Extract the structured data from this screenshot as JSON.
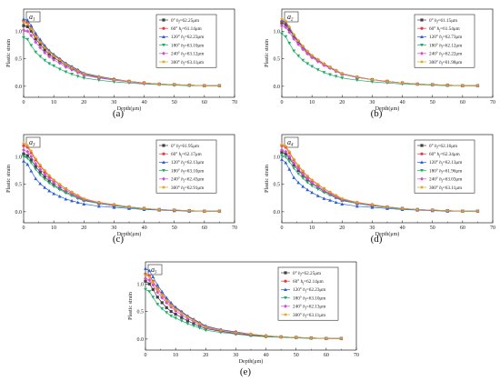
{
  "chart_data": [
    {
      "type": "line",
      "caption": "(a)",
      "tag": {
        "base": "a",
        "sub": "1"
      },
      "xlabel": "Depth(μm)",
      "ylabel": "Plastic strain",
      "xlim": [
        0,
        70
      ],
      "ylim": [
        -0.2,
        1.4
      ],
      "xticks": [
        0,
        10,
        20,
        30,
        40,
        50,
        60,
        70
      ],
      "yticks": [
        0.0,
        0.5,
        1.0
      ],
      "x": [
        0,
        1.3,
        2.5,
        4,
        5.5,
        7,
        8.5,
        10,
        12,
        14,
        16,
        18,
        20,
        25,
        30,
        35,
        40,
        45,
        50,
        55,
        60,
        65
      ],
      "series": [
        {
          "name": "0° hf=62.25μm",
          "values": [
            1.1,
            1.08,
            1.0,
            0.86,
            0.76,
            0.66,
            0.58,
            0.52,
            0.45,
            0.38,
            0.32,
            0.27,
            0.22,
            0.16,
            0.12,
            0.09,
            0.06,
            0.04,
            0.03,
            0.02,
            0.01,
            0.01
          ]
        },
        {
          "name": "60° hf=61.14μm",
          "values": [
            1.18,
            1.15,
            1.05,
            0.92,
            0.82,
            0.72,
            0.63,
            0.56,
            0.49,
            0.41,
            0.35,
            0.29,
            0.23,
            0.17,
            0.13,
            0.09,
            0.06,
            0.04,
            0.03,
            0.02,
            0.01,
            0.01
          ]
        },
        {
          "name": "120° hf=62.23μm",
          "values": [
            1.22,
            1.2,
            1.1,
            0.96,
            0.85,
            0.74,
            0.65,
            0.58,
            0.5,
            0.42,
            0.36,
            0.3,
            0.24,
            0.18,
            0.13,
            0.09,
            0.06,
            0.04,
            0.03,
            0.02,
            0.01,
            0.01
          ]
        },
        {
          "name": "180° hf=63.10μm",
          "values": [
            0.88,
            0.85,
            0.74,
            0.62,
            0.54,
            0.47,
            0.41,
            0.37,
            0.31,
            0.26,
            0.22,
            0.18,
            0.15,
            0.11,
            0.08,
            0.06,
            0.04,
            0.03,
            0.02,
            0.01,
            0.01,
            0.01
          ]
        },
        {
          "name": "240° hf=63.12μm",
          "values": [
            1.02,
            1.0,
            0.92,
            0.8,
            0.7,
            0.61,
            0.54,
            0.48,
            0.42,
            0.35,
            0.3,
            0.25,
            0.2,
            0.15,
            0.11,
            0.08,
            0.05,
            0.04,
            0.03,
            0.02,
            0.01,
            0.01
          ]
        },
        {
          "name": "300° hf=63.11μm",
          "values": [
            1.16,
            1.13,
            1.04,
            0.9,
            0.8,
            0.7,
            0.62,
            0.55,
            0.48,
            0.4,
            0.34,
            0.28,
            0.23,
            0.17,
            0.12,
            0.09,
            0.06,
            0.04,
            0.03,
            0.02,
            0.01,
            0.01
          ]
        }
      ]
    },
    {
      "type": "line",
      "caption": "(b)",
      "tag": {
        "base": "a",
        "sub": "2"
      },
      "xlabel": "Depth(μm)",
      "ylabel": "Plastic strain",
      "xlim": [
        0,
        70
      ],
      "ylim": [
        -0.2,
        1.4
      ],
      "xticks": [
        0,
        10,
        20,
        30,
        40,
        50,
        60,
        70
      ],
      "yticks": [
        0.0,
        0.5,
        1.0
      ],
      "x": [
        0,
        1.3,
        2.5,
        4,
        5.5,
        7,
        8.5,
        10,
        12,
        14,
        16,
        18,
        20,
        25,
        30,
        35,
        40,
        45,
        50,
        55,
        60,
        65
      ],
      "series": [
        {
          "name": "0° hf=61.15μm",
          "values": [
            1.15,
            1.12,
            1.03,
            0.9,
            0.8,
            0.7,
            0.61,
            0.54,
            0.47,
            0.4,
            0.34,
            0.28,
            0.22,
            0.16,
            0.12,
            0.09,
            0.06,
            0.04,
            0.03,
            0.02,
            0.01,
            0.01
          ]
        },
        {
          "name": "60° hf=61.54μm",
          "values": [
            1.18,
            1.15,
            1.05,
            0.92,
            0.81,
            0.71,
            0.62,
            0.55,
            0.48,
            0.4,
            0.34,
            0.28,
            0.23,
            0.17,
            0.12,
            0.09,
            0.06,
            0.04,
            0.03,
            0.02,
            0.01,
            0.01
          ]
        },
        {
          "name": "120° hf=62.73μm",
          "values": [
            1.2,
            1.16,
            1.06,
            0.93,
            0.82,
            0.72,
            0.63,
            0.56,
            0.48,
            0.41,
            0.35,
            0.29,
            0.23,
            0.17,
            0.12,
            0.09,
            0.06,
            0.04,
            0.03,
            0.02,
            0.01,
            0.01
          ]
        },
        {
          "name": "180° hf=62.12μm",
          "values": [
            0.95,
            0.9,
            0.78,
            0.64,
            0.55,
            0.47,
            0.41,
            0.36,
            0.3,
            0.25,
            0.21,
            0.18,
            0.15,
            0.11,
            0.08,
            0.06,
            0.04,
            0.03,
            0.02,
            0.01,
            0.01,
            0.01
          ]
        },
        {
          "name": "240° hf=62.22μm",
          "values": [
            1.1,
            1.07,
            0.98,
            0.86,
            0.76,
            0.67,
            0.59,
            0.52,
            0.45,
            0.38,
            0.33,
            0.27,
            0.22,
            0.16,
            0.12,
            0.08,
            0.06,
            0.04,
            0.03,
            0.02,
            0.01,
            0.01
          ]
        },
        {
          "name": "300° hf=61.98μm",
          "values": [
            1.22,
            1.18,
            1.08,
            0.94,
            0.83,
            0.73,
            0.64,
            0.56,
            0.49,
            0.41,
            0.35,
            0.29,
            0.23,
            0.17,
            0.12,
            0.09,
            0.06,
            0.04,
            0.03,
            0.02,
            0.01,
            0.01
          ]
        }
      ]
    },
    {
      "type": "line",
      "caption": "(c)",
      "tag": {
        "base": "a",
        "sub": "3"
      },
      "xlabel": "Depth(μm)",
      "ylabel": "Plastic strain",
      "xlim": [
        0,
        70
      ],
      "ylim": [
        -0.2,
        1.4
      ],
      "xticks": [
        0,
        10,
        20,
        30,
        40,
        50,
        60,
        70
      ],
      "yticks": [
        0.0,
        0.5,
        1.0
      ],
      "x": [
        0,
        1.3,
        2.5,
        4,
        5.5,
        7,
        8.5,
        10,
        12,
        14,
        16,
        18,
        20,
        25,
        30,
        35,
        40,
        45,
        50,
        55,
        60,
        65
      ],
      "series": [
        {
          "name": "0° hf=61.95μm",
          "values": [
            1.05,
            1.02,
            0.94,
            0.82,
            0.72,
            0.63,
            0.55,
            0.49,
            0.42,
            0.36,
            0.31,
            0.26,
            0.21,
            0.15,
            0.11,
            0.08,
            0.06,
            0.04,
            0.03,
            0.02,
            0.01,
            0.01
          ]
        },
        {
          "name": "60° hf=62.17μm",
          "values": [
            1.2,
            1.17,
            1.07,
            0.94,
            0.83,
            0.73,
            0.64,
            0.57,
            0.49,
            0.42,
            0.35,
            0.29,
            0.23,
            0.17,
            0.13,
            0.09,
            0.06,
            0.04,
            0.03,
            0.02,
            0.01,
            0.01
          ]
        },
        {
          "name": "120° hf=62.13μm",
          "values": [
            0.92,
            0.86,
            0.74,
            0.6,
            0.51,
            0.44,
            0.38,
            0.33,
            0.28,
            0.23,
            0.2,
            0.17,
            0.14,
            0.1,
            0.08,
            0.06,
            0.04,
            0.03,
            0.02,
            0.01,
            0.01,
            0.01
          ]
        },
        {
          "name": "180° hf=63.10μm",
          "values": [
            1.0,
            0.97,
            0.89,
            0.77,
            0.67,
            0.59,
            0.52,
            0.46,
            0.4,
            0.34,
            0.29,
            0.24,
            0.2,
            0.15,
            0.11,
            0.08,
            0.05,
            0.04,
            0.03,
            0.02,
            0.01,
            0.01
          ]
        },
        {
          "name": "240° hf=62.43μm",
          "values": [
            1.12,
            1.09,
            1.0,
            0.87,
            0.77,
            0.68,
            0.6,
            0.53,
            0.46,
            0.39,
            0.33,
            0.27,
            0.22,
            0.16,
            0.12,
            0.09,
            0.06,
            0.04,
            0.03,
            0.02,
            0.01,
            0.01
          ]
        },
        {
          "name": "300° hf=62.91μm",
          "values": [
            1.24,
            1.2,
            1.1,
            0.96,
            0.85,
            0.75,
            0.66,
            0.58,
            0.5,
            0.42,
            0.36,
            0.3,
            0.24,
            0.17,
            0.13,
            0.09,
            0.06,
            0.04,
            0.03,
            0.02,
            0.01,
            0.01
          ]
        }
      ]
    },
    {
      "type": "line",
      "caption": "(d)",
      "tag": {
        "base": "a",
        "sub": "4"
      },
      "xlabel": "Depth(μm)",
      "ylabel": "Plastic strain",
      "xlim": [
        0,
        70
      ],
      "ylim": [
        -0.2,
        1.4
      ],
      "xticks": [
        0,
        10,
        20,
        30,
        40,
        50,
        60,
        70
      ],
      "yticks": [
        0.0,
        0.5,
        1.0
      ],
      "x": [
        0,
        1.3,
        2.5,
        4,
        5.5,
        7,
        8.5,
        10,
        12,
        14,
        16,
        18,
        20,
        25,
        30,
        35,
        40,
        45,
        50,
        55,
        60,
        65
      ],
      "series": [
        {
          "name": "0° hf=62.16μm",
          "values": [
            1.08,
            1.05,
            0.97,
            0.85,
            0.75,
            0.66,
            0.58,
            0.51,
            0.44,
            0.37,
            0.32,
            0.26,
            0.21,
            0.15,
            0.11,
            0.08,
            0.06,
            0.04,
            0.03,
            0.02,
            0.01,
            0.01
          ]
        },
        {
          "name": "60° hf=62.34μm",
          "values": [
            1.2,
            1.17,
            1.07,
            0.94,
            0.83,
            0.73,
            0.64,
            0.57,
            0.49,
            0.42,
            0.35,
            0.29,
            0.23,
            0.17,
            0.13,
            0.09,
            0.06,
            0.04,
            0.03,
            0.02,
            0.01,
            0.01
          ]
        },
        {
          "name": "120° hf=62.13μm",
          "values": [
            0.95,
            0.89,
            0.77,
            0.62,
            0.53,
            0.46,
            0.4,
            0.35,
            0.29,
            0.24,
            0.21,
            0.17,
            0.14,
            0.1,
            0.08,
            0.06,
            0.04,
            0.03,
            0.02,
            0.01,
            0.01,
            0.01
          ]
        },
        {
          "name": "180° hf=61.96μm",
          "values": [
            1.02,
            0.99,
            0.91,
            0.79,
            0.69,
            0.61,
            0.53,
            0.47,
            0.41,
            0.35,
            0.3,
            0.25,
            0.2,
            0.15,
            0.11,
            0.08,
            0.05,
            0.04,
            0.03,
            0.02,
            0.01,
            0.01
          ]
        },
        {
          "name": "240° hf=63.03μm",
          "values": [
            1.12,
            1.09,
            1.0,
            0.88,
            0.78,
            0.68,
            0.6,
            0.53,
            0.46,
            0.39,
            0.33,
            0.27,
            0.22,
            0.16,
            0.12,
            0.09,
            0.06,
            0.04,
            0.03,
            0.02,
            0.01,
            0.01
          ]
        },
        {
          "name": "300° hf=63.11μm",
          "values": [
            1.22,
            1.19,
            1.09,
            0.95,
            0.84,
            0.74,
            0.65,
            0.58,
            0.5,
            0.42,
            0.36,
            0.3,
            0.24,
            0.17,
            0.13,
            0.09,
            0.06,
            0.04,
            0.03,
            0.02,
            0.01,
            0.01
          ]
        }
      ]
    },
    {
      "type": "line",
      "caption": "(e)",
      "tag": {
        "base": "a",
        "sub": "5"
      },
      "xlabel": "Depth(μm)",
      "ylabel": "Plastic strain",
      "xlim": [
        0,
        70
      ],
      "ylim": [
        -0.2,
        1.4
      ],
      "xticks": [
        0,
        10,
        20,
        30,
        40,
        50,
        60,
        70
      ],
      "yticks": [
        0.0,
        0.5,
        1.0
      ],
      "x": [
        0,
        1.3,
        2.5,
        4,
        5.5,
        7,
        8.5,
        10,
        12,
        14,
        16,
        18,
        20,
        25,
        30,
        35,
        40,
        45,
        50,
        55,
        60,
        65
      ],
      "series": [
        {
          "name": "0° hf=62.25μm",
          "values": [
            1.05,
            1.0,
            0.9,
            0.76,
            0.66,
            0.57,
            0.5,
            0.45,
            0.39,
            0.33,
            0.28,
            0.23,
            0.19,
            0.14,
            0.1,
            0.07,
            0.05,
            0.04,
            0.03,
            0.02,
            0.01,
            0.01
          ]
        },
        {
          "name": "60° hf=62.14μm",
          "values": [
            1.18,
            1.15,
            1.05,
            0.92,
            0.82,
            0.72,
            0.63,
            0.56,
            0.49,
            0.41,
            0.35,
            0.29,
            0.23,
            0.17,
            0.13,
            0.09,
            0.06,
            0.04,
            0.03,
            0.02,
            0.01,
            0.01
          ]
        },
        {
          "name": "120° hf=62.23μm",
          "values": [
            1.28,
            1.24,
            1.13,
            0.98,
            0.86,
            0.75,
            0.66,
            0.58,
            0.5,
            0.42,
            0.36,
            0.3,
            0.24,
            0.17,
            0.13,
            0.09,
            0.06,
            0.04,
            0.03,
            0.02,
            0.01,
            0.01
          ]
        },
        {
          "name": "180° hf=63.10μm",
          "values": [
            0.9,
            0.86,
            0.76,
            0.63,
            0.55,
            0.48,
            0.42,
            0.38,
            0.33,
            0.28,
            0.24,
            0.2,
            0.16,
            0.12,
            0.09,
            0.06,
            0.04,
            0.03,
            0.02,
            0.01,
            0.01,
            0.01
          ]
        },
        {
          "name": "240° hf=62.13μm",
          "values": [
            1.1,
            1.07,
            0.98,
            0.85,
            0.75,
            0.66,
            0.58,
            0.51,
            0.44,
            0.37,
            0.32,
            0.26,
            0.21,
            0.15,
            0.11,
            0.08,
            0.06,
            0.04,
            0.03,
            0.02,
            0.01,
            0.01
          ]
        },
        {
          "name": "300° hf=63.11μm",
          "values": [
            1.16,
            1.13,
            1.03,
            0.9,
            0.8,
            0.7,
            0.61,
            0.54,
            0.47,
            0.4,
            0.34,
            0.28,
            0.22,
            0.16,
            0.12,
            0.09,
            0.06,
            0.04,
            0.03,
            0.02,
            0.01,
            0.01
          ]
        }
      ]
    }
  ],
  "series_styles": [
    {
      "color": "#404040",
      "marker": "square"
    },
    {
      "color": "#e8383d",
      "marker": "circle"
    },
    {
      "color": "#2b5fd9",
      "marker": "triangle"
    },
    {
      "color": "#1fae6a",
      "marker": "triangle-down"
    },
    {
      "color": "#d24bd6",
      "marker": "diamond"
    },
    {
      "color": "#e3a21a",
      "marker": "star"
    }
  ]
}
